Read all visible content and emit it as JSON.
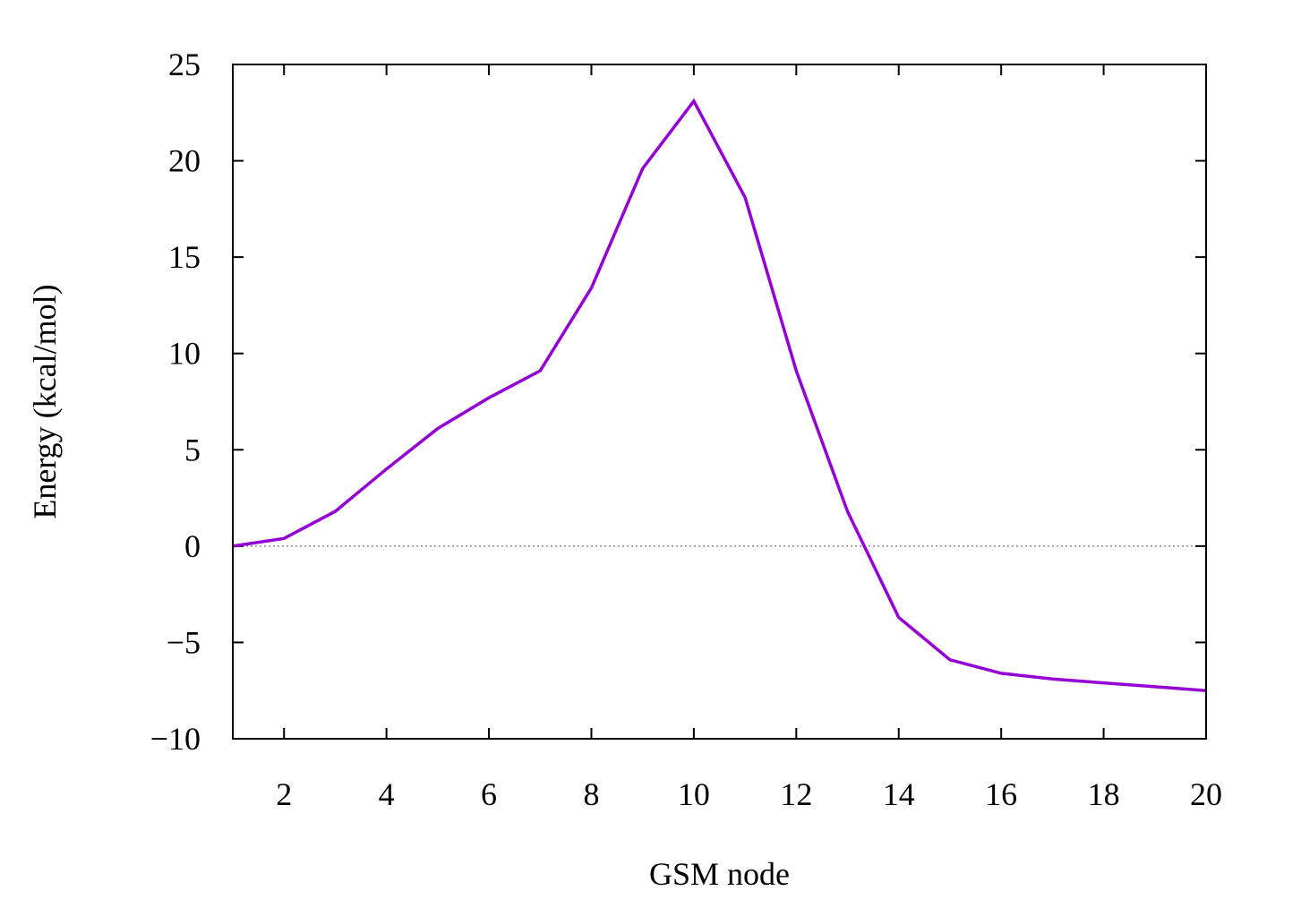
{
  "chart_data": {
    "type": "line",
    "title": "",
    "xlabel": "GSM node",
    "ylabel": "Energy (kcal/mol)",
    "xlim": [
      1,
      20
    ],
    "ylim": [
      -10,
      25
    ],
    "x_ticks": [
      2,
      4,
      6,
      8,
      10,
      12,
      14,
      16,
      18,
      20
    ],
    "x_tick_labels": [
      "2",
      "4",
      "6",
      "8",
      "10",
      "12",
      "14",
      "16",
      "18",
      "20"
    ],
    "y_ticks": [
      -10,
      -5,
      0,
      5,
      10,
      15,
      20,
      25
    ],
    "y_tick_labels": [
      "−10",
      "−5",
      "0",
      "5",
      "10",
      "15",
      "20",
      "25"
    ],
    "grid": false,
    "zero_reference_line": true,
    "series": [
      {
        "color": "#9400d3",
        "x": [
          1,
          2,
          3,
          4,
          5,
          6,
          7,
          8,
          9,
          10,
          11,
          12,
          13,
          14,
          15,
          16,
          17,
          18,
          19,
          20
        ],
        "values": [
          0.0,
          0.4,
          1.8,
          4.0,
          6.1,
          7.7,
          9.1,
          13.4,
          19.6,
          23.1,
          18.1,
          9.1,
          1.8,
          -3.7,
          -5.9,
          -6.6,
          -6.9,
          -7.1,
          -7.3,
          -7.5
        ]
      }
    ]
  }
}
